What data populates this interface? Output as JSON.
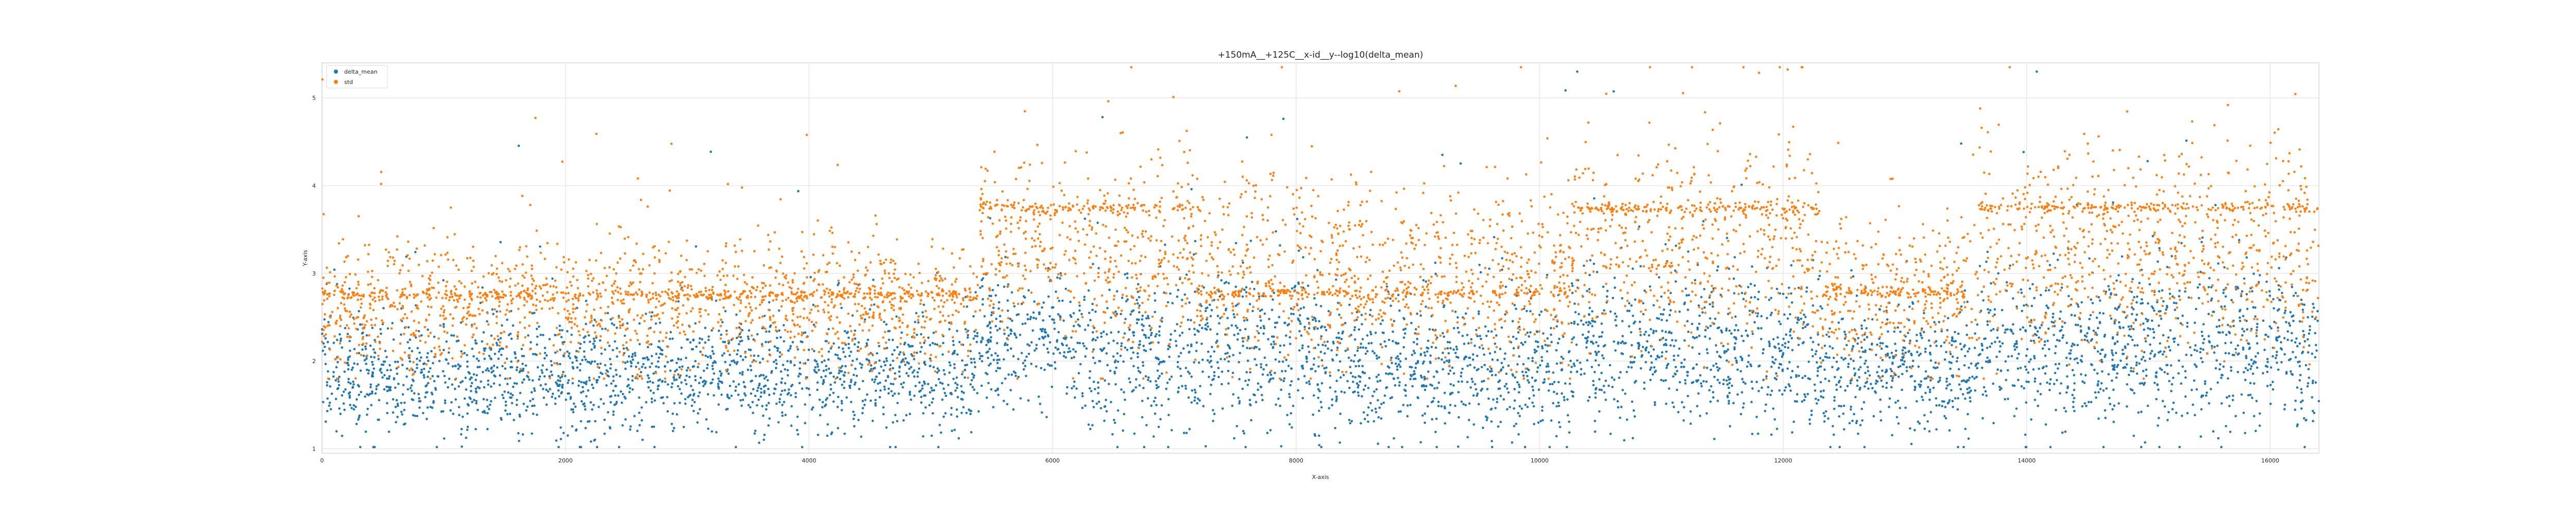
{
  "chart_data": {
    "type": "scatter",
    "title": "+150mA__+125C__x-id__y--log10(delta_mean)",
    "xlabel": "X-axis",
    "ylabel": "Y-axis",
    "xlim": [
      0,
      16400
    ],
    "ylim": [
      0.95,
      5.4
    ],
    "x_ticks": [
      0,
      2000,
      4000,
      6000,
      8000,
      10000,
      12000,
      14000,
      16000
    ],
    "x_tick_labels": [
      "0",
      "2000",
      "4000",
      "6000",
      "8000",
      "10000",
      "12000",
      "14000",
      "16000"
    ],
    "y_ticks": [
      1,
      2,
      3,
      4,
      5
    ],
    "y_tick_labels": [
      "1",
      "2",
      "3",
      "4",
      "5"
    ],
    "grid": true,
    "legend_position": "top-left",
    "series": [
      {
        "name": "delta_mean",
        "color": "#1f77b4",
        "segments": [
          {
            "x_range": [
              0,
              5400
            ],
            "center": 1.85,
            "spread": 0.35
          },
          {
            "x_range": [
              5400,
              6150
            ],
            "center": 2.3,
            "spread": 0.35
          },
          {
            "x_range": [
              6150,
              7200
            ],
            "center": 2.05,
            "spread": 0.45
          },
          {
            "x_range": [
              7200,
              8150
            ],
            "center": 2.15,
            "spread": 0.45
          },
          {
            "x_range": [
              8150,
              10250
            ],
            "center": 1.9,
            "spread": 0.4
          },
          {
            "x_range": [
              10250,
              11300
            ],
            "center": 2.2,
            "spread": 0.45
          },
          {
            "x_range": [
              11300,
              12300
            ],
            "center": 2.1,
            "spread": 0.45
          },
          {
            "x_range": [
              12300,
              13600
            ],
            "center": 1.9,
            "spread": 0.38
          },
          {
            "x_range": [
              13600,
              16400
            ],
            "center": 2.15,
            "spread": 0.45
          }
        ]
      },
      {
        "name": "std",
        "color": "#ff7f0e",
        "segments": [
          {
            "x_range": [
              0,
              5400
            ],
            "center": 2.65,
            "spread": 0.38,
            "band": 2.75
          },
          {
            "x_range": [
              5400,
              6150
            ],
            "center": 3.3,
            "spread": 0.5,
            "band": 3.75
          },
          {
            "x_range": [
              6150,
              7200
            ],
            "center": 3.2,
            "spread": 0.55,
            "band": 3.75
          },
          {
            "x_range": [
              7200,
              8150
            ],
            "center": 3.1,
            "spread": 0.55,
            "band": 2.78
          },
          {
            "x_range": [
              8150,
              10250
            ],
            "center": 2.9,
            "spread": 0.5,
            "band": 2.78
          },
          {
            "x_range": [
              10250,
              11300
            ],
            "center": 3.3,
            "spread": 0.6,
            "band": 3.75
          },
          {
            "x_range": [
              11300,
              12300
            ],
            "center": 3.3,
            "spread": 0.6,
            "band": 3.75
          },
          {
            "x_range": [
              12300,
              13600
            ],
            "center": 2.75,
            "spread": 0.42,
            "band": 2.78
          },
          {
            "x_range": [
              13600,
              16400
            ],
            "center": 3.25,
            "spread": 0.58,
            "band": 3.75
          }
        ]
      }
    ]
  }
}
